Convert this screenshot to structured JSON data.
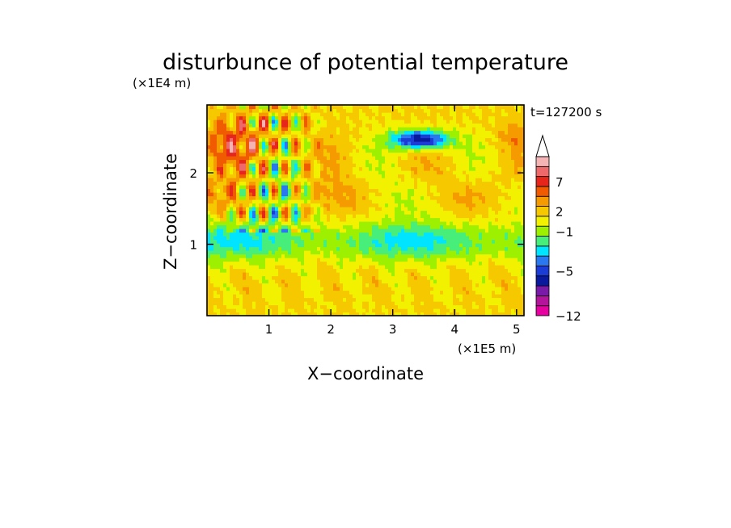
{
  "chart_data": {
    "type": "heatmap",
    "title": "disturbunce of potential temperature",
    "time_label": "t=127200 s",
    "xlabel": "X−coordinate",
    "ylabel": "Z−coordinate",
    "x_scale_label": "(×1E5 m)",
    "y_scale_label": "(×1E4 m)",
    "xlim": [
      0,
      5.12
    ],
    "ylim": [
      0,
      2.95
    ],
    "x_ticks": [
      1,
      2,
      3,
      4,
      5
    ],
    "y_ticks": [
      1,
      2
    ],
    "grid": false,
    "colorbar": {
      "colors": [
        "#e600a0",
        "#b4149c",
        "#7a1aa8",
        "#0a1a9e",
        "#1c3cd6",
        "#2a78f0",
        "#00e4ff",
        "#48ee7a",
        "#9cf000",
        "#f2f200",
        "#f5c800",
        "#f59b00",
        "#f05a00",
        "#e6261a",
        "#ee6a6a",
        "#f4b4b4"
      ],
      "extend_max_color": "#ffffff",
      "tick_labels": [
        {
          "label": "−12",
          "level": 0
        },
        {
          "label": "−5",
          "level": 4.5
        },
        {
          "label": "−1",
          "level": 8.5
        },
        {
          "label": "2",
          "level": 10.5
        },
        {
          "label": "7",
          "level": 13.5
        }
      ]
    },
    "features": [
      {
        "kind": "blob",
        "x": 3.45,
        "z": 2.47,
        "rx": 0.55,
        "rz": 0.16,
        "level": 3,
        "core_level": 2
      },
      {
        "kind": "band",
        "z": 2.5,
        "x0": 0.0,
        "x1": 1.3,
        "level": 13
      },
      {
        "kind": "band",
        "z": 1.0,
        "x0": 0.0,
        "x1": 5.12,
        "level": 6
      },
      {
        "kind": "band",
        "z": 0.45,
        "x0": 0.0,
        "x1": 5.12,
        "level": 10
      }
    ]
  }
}
